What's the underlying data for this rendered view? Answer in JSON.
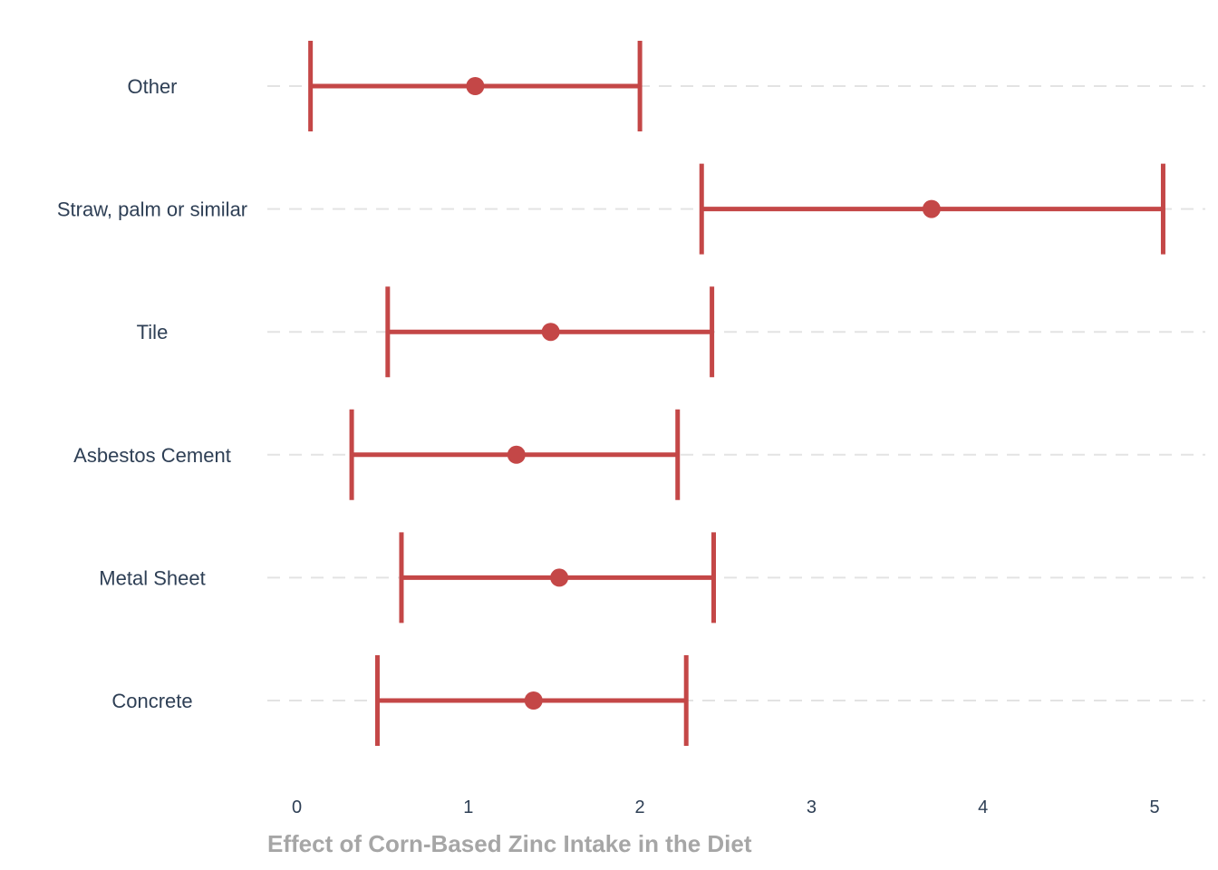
{
  "chart_data": {
    "type": "errorbar",
    "categories": [
      "Other",
      "Straw, palm or similar",
      "Tile",
      "Asbestos Cement",
      "Metal Sheet",
      "Concrete"
    ],
    "series": [
      {
        "estimate": [
          1.04,
          3.7,
          1.48,
          1.28,
          1.53,
          1.38
        ],
        "lower": [
          0.08,
          2.36,
          0.53,
          0.32,
          0.61,
          0.47
        ],
        "upper": [
          2.0,
          5.05,
          2.42,
          2.22,
          2.43,
          2.27
        ]
      }
    ],
    "xlabel": "Effect of Corn-Based Zinc Intake in the Diet",
    "ylabel": "",
    "xlim": [
      -0.15,
      5.15
    ],
    "xticks": [
      "0",
      "1",
      "2",
      "3",
      "4",
      "5"
    ],
    "grid": "horizontal dashed",
    "color": "#c44747"
  }
}
